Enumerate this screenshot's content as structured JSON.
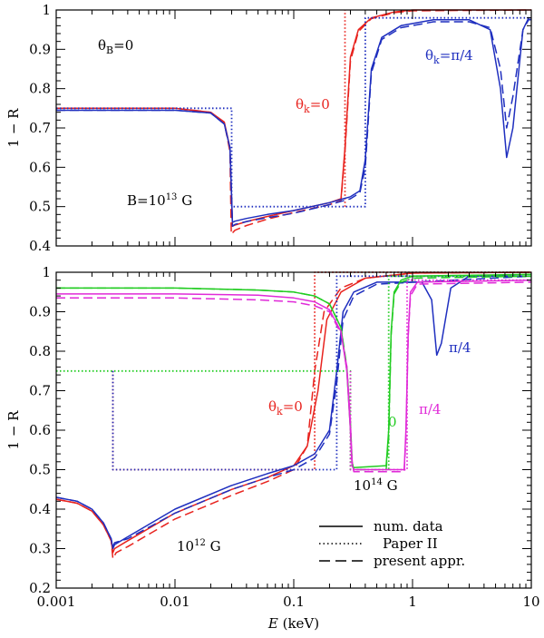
{
  "chart_data": [
    {
      "type": "line",
      "panel": "top",
      "xscale": "log",
      "xlim": [
        0.001,
        10
      ],
      "ylim": [
        0.4,
        1.0
      ],
      "ylabel": "1 − R",
      "xticks": [
        "0.001",
        "0.01",
        "0.1",
        "1",
        "10"
      ],
      "yticks": [
        "0.4",
        "0.5",
        "0.6",
        "0.7",
        "0.8",
        "0.9",
        "1"
      ],
      "annotations": {
        "theta_b": "θ_B = 0",
        "field": "B = 10^13 G",
        "theta_k0": "θ_k = 0",
        "theta_k_pi4": "θ_k = π/4"
      },
      "colors": {
        "theta_k0": "#e8231e",
        "theta_k_pi4": "#1f2fbf"
      },
      "series": [
        {
          "name": "θk=0 num. data",
          "color": "#e8231e",
          "style": "solid",
          "x": [
            0.001,
            0.01,
            0.02,
            0.026,
            0.029,
            0.0305,
            0.032,
            0.04,
            0.06,
            0.1,
            0.2,
            0.25,
            0.27,
            0.3,
            0.35,
            0.45,
            0.7,
            1,
            10
          ],
          "y": [
            0.75,
            0.75,
            0.74,
            0.715,
            0.65,
            0.45,
            0.453,
            0.462,
            0.475,
            0.49,
            0.51,
            0.52,
            0.65,
            0.88,
            0.95,
            0.98,
            0.995,
            1.0,
            1.0
          ]
        },
        {
          "name": "θk=0 present appr.",
          "color": "#e8231e",
          "style": "dashed",
          "x": [
            0.001,
            0.01,
            0.02,
            0.026,
            0.029,
            0.0298,
            0.032,
            0.04,
            0.06,
            0.1,
            0.2,
            0.25,
            0.27,
            0.3,
            0.35,
            0.45,
            0.7,
            1,
            10
          ],
          "y": [
            0.75,
            0.75,
            0.74,
            0.713,
            0.64,
            0.43,
            0.44,
            0.452,
            0.468,
            0.485,
            0.505,
            0.515,
            0.64,
            0.87,
            0.945,
            0.978,
            0.993,
            0.998,
            1.0
          ]
        },
        {
          "name": "θk=0 Paper II",
          "color": "#e8231e",
          "style": "dotted",
          "x": [
            0.27,
            0.27
          ],
          "y": [
            0.5,
            1.0
          ]
        },
        {
          "name": "θk=π/4 num. data",
          "color": "#1f2fbf",
          "style": "solid",
          "x": [
            0.001,
            0.01,
            0.02,
            0.026,
            0.029,
            0.0305,
            0.032,
            0.04,
            0.06,
            0.1,
            0.2,
            0.3,
            0.36,
            0.4,
            0.45,
            0.55,
            0.8,
            1.5,
            3,
            4.5,
            5.5,
            6.2,
            7,
            8.5,
            9.5,
            10
          ],
          "y": [
            0.745,
            0.745,
            0.738,
            0.71,
            0.65,
            0.46,
            0.463,
            0.47,
            0.48,
            0.49,
            0.51,
            0.525,
            0.54,
            0.62,
            0.85,
            0.93,
            0.96,
            0.975,
            0.975,
            0.95,
            0.8,
            0.625,
            0.7,
            0.95,
            0.98,
            0.98
          ]
        },
        {
          "name": "θk=π/4 present appr.",
          "color": "#1f2fbf",
          "style": "dashed",
          "x": [
            0.001,
            0.01,
            0.02,
            0.026,
            0.029,
            0.0305,
            0.032,
            0.04,
            0.06,
            0.1,
            0.2,
            0.3,
            0.36,
            0.4,
            0.45,
            0.55,
            0.8,
            1.5,
            3,
            4.5,
            5.5,
            6.2,
            7,
            8.5,
            9.5,
            10
          ],
          "y": [
            0.745,
            0.745,
            0.738,
            0.71,
            0.65,
            0.45,
            0.455,
            0.462,
            0.472,
            0.483,
            0.505,
            0.52,
            0.535,
            0.6,
            0.84,
            0.925,
            0.955,
            0.97,
            0.97,
            0.955,
            0.85,
            0.7,
            0.78,
            0.95,
            0.975,
            0.975
          ]
        },
        {
          "name": "θk=π/4 Paper II",
          "color": "#1f2fbf",
          "style": "dotted",
          "x": [
            0.001,
            0.03,
            0.03,
            0.4,
            0.4,
            10
          ],
          "y": [
            0.75,
            0.75,
            0.5,
            0.5,
            0.98,
            0.98
          ]
        }
      ]
    },
    {
      "type": "line",
      "panel": "bottom",
      "xscale": "log",
      "xlim": [
        0.001,
        10
      ],
      "ylim": [
        0.2,
        1.0
      ],
      "xlabel": "E (keV)",
      "ylabel": "1 − R",
      "xticks": [
        "0.001",
        "0.01",
        "0.1",
        "1",
        "10"
      ],
      "yticks": [
        "0.2",
        "0.3",
        "0.4",
        "0.5",
        "0.6",
        "0.7",
        "0.8",
        "0.9",
        "1"
      ],
      "annotations": {
        "field_12": "10^12 G",
        "field_14": "10^14 G",
        "theta_k0": "θ_k = 0",
        "zero": "0",
        "pi4_blue": "π/4",
        "pi4_magenta": "π/4"
      },
      "legend": [
        "num. data",
        "Paper II",
        "present appr."
      ],
      "colors": {
        "b12_k0": "#e8231e",
        "b12_pi4": "#1f2fbf",
        "b14_k0": "#22cc22",
        "b14_pi4": "#e02ad8"
      },
      "series": [
        {
          "name": "10^12 G θk=0 num. data",
          "color": "#e8231e",
          "style": "solid",
          "x": [
            0.001,
            0.0015,
            0.002,
            0.0025,
            0.0029,
            0.003,
            0.0031,
            0.004,
            0.01,
            0.03,
            0.06,
            0.1,
            0.13,
            0.16,
            0.19,
            0.25,
            0.4,
            1,
            10
          ],
          "y": [
            0.425,
            0.415,
            0.395,
            0.36,
            0.32,
            0.29,
            0.3,
            0.32,
            0.39,
            0.45,
            0.48,
            0.51,
            0.56,
            0.7,
            0.88,
            0.95,
            0.985,
            0.998,
            1.0
          ]
        },
        {
          "name": "10^12 G θk=0 present appr.",
          "color": "#e8231e",
          "style": "dashed",
          "x": [
            0.001,
            0.0015,
            0.002,
            0.0025,
            0.0029,
            0.003,
            0.0032,
            0.004,
            0.01,
            0.03,
            0.06,
            0.1,
            0.13,
            0.15,
            0.18,
            0.25,
            0.4,
            1,
            10
          ],
          "y": [
            0.425,
            0.415,
            0.395,
            0.36,
            0.32,
            0.275,
            0.29,
            0.305,
            0.375,
            0.435,
            0.47,
            0.5,
            0.56,
            0.75,
            0.9,
            0.96,
            0.985,
            0.998,
            1.0
          ]
        },
        {
          "name": "10^12 G θk=0 Paper II",
          "color": "#e8231e",
          "style": "dotted",
          "x": [
            0.003,
            0.003,
            0.15,
            0.15,
            10
          ],
          "y": [
            0.75,
            0.5,
            0.5,
            1.0,
            1.0
          ]
        },
        {
          "name": "10^12 G θk=π/4 num. data",
          "color": "#1f2fbf",
          "style": "solid",
          "x": [
            0.001,
            0.0015,
            0.002,
            0.0025,
            0.0029,
            0.003,
            0.0031,
            0.004,
            0.01,
            0.03,
            0.06,
            0.1,
            0.15,
            0.2,
            0.23,
            0.26,
            0.32,
            0.5,
            1.2,
            1.45,
            1.6,
            1.75,
            2.1,
            3,
            10
          ],
          "y": [
            0.43,
            0.42,
            0.4,
            0.365,
            0.325,
            0.3,
            0.31,
            0.33,
            0.4,
            0.46,
            0.49,
            0.51,
            0.54,
            0.6,
            0.75,
            0.9,
            0.95,
            0.975,
            0.975,
            0.93,
            0.79,
            0.82,
            0.96,
            0.99,
            0.99
          ]
        },
        {
          "name": "10^12 G θk=π/4 present appr.",
          "color": "#1f2fbf",
          "style": "dashed",
          "x": [
            0.001,
            0.0015,
            0.002,
            0.0025,
            0.0029,
            0.003,
            0.0031,
            0.004,
            0.01,
            0.03,
            0.06,
            0.1,
            0.15,
            0.2,
            0.23,
            0.26,
            0.32,
            0.5,
            10
          ],
          "y": [
            0.43,
            0.42,
            0.4,
            0.365,
            0.325,
            0.305,
            0.315,
            0.325,
            0.39,
            0.45,
            0.48,
            0.5,
            0.53,
            0.59,
            0.72,
            0.88,
            0.94,
            0.97,
            0.99
          ]
        },
        {
          "name": "10^12 G θk=π/4 Paper II",
          "color": "#1f2fbf",
          "style": "dotted",
          "x": [
            0.003,
            0.003,
            0.23,
            0.23,
            10
          ],
          "y": [
            0.75,
            0.5,
            0.5,
            0.99,
            0.99
          ]
        },
        {
          "name": "10^14 G θk=0 num. data",
          "color": "#22cc22",
          "style": "solid",
          "x": [
            0.001,
            0.01,
            0.05,
            0.1,
            0.15,
            0.2,
            0.25,
            0.28,
            0.3,
            0.31,
            0.32,
            0.6,
            0.63,
            0.66,
            0.7,
            0.8,
            1,
            10
          ],
          "y": [
            0.96,
            0.96,
            0.955,
            0.95,
            0.94,
            0.92,
            0.86,
            0.75,
            0.6,
            0.51,
            0.505,
            0.51,
            0.6,
            0.85,
            0.95,
            0.98,
            0.99,
            0.995
          ]
        },
        {
          "name": "10^14 G θk=0 present appr.",
          "color": "#22cc22",
          "style": "dashed",
          "x": [
            0.001,
            0.01,
            0.05,
            0.1,
            0.15,
            0.2,
            0.25,
            0.28,
            0.3,
            0.31,
            0.32,
            0.6,
            0.63,
            0.66,
            0.7,
            0.8,
            1,
            10
          ],
          "y": [
            0.96,
            0.96,
            0.955,
            0.95,
            0.94,
            0.92,
            0.86,
            0.76,
            0.62,
            0.52,
            0.5,
            0.5,
            0.58,
            0.84,
            0.945,
            0.975,
            0.985,
            0.99
          ]
        },
        {
          "name": "10^14 G θk=0 Paper II",
          "color": "#22cc22",
          "style": "dotted",
          "x": [
            0.001,
            0.3,
            0.3,
            0.63,
            0.63,
            10
          ],
          "y": [
            0.75,
            0.75,
            0.5,
            0.5,
            0.99,
            0.99
          ]
        },
        {
          "name": "10^14 G θk=π/4 num. data",
          "color": "#e02ad8",
          "style": "solid",
          "x": [
            0.001,
            0.01,
            0.05,
            0.1,
            0.15,
            0.2,
            0.25,
            0.28,
            0.3,
            0.31,
            0.32,
            0.85,
            0.88,
            0.92,
            0.96,
            1.1,
            10
          ],
          "y": [
            0.945,
            0.945,
            0.942,
            0.935,
            0.925,
            0.905,
            0.85,
            0.75,
            0.6,
            0.51,
            0.5,
            0.5,
            0.6,
            0.85,
            0.95,
            0.975,
            0.98
          ]
        },
        {
          "name": "10^14 G θk=π/4 present appr.",
          "color": "#e02ad8",
          "style": "dashed",
          "x": [
            0.001,
            0.01,
            0.05,
            0.1,
            0.15,
            0.2,
            0.25,
            0.28,
            0.3,
            0.31,
            0.32,
            0.85,
            0.88,
            0.92,
            0.96,
            1.1,
            10
          ],
          "y": [
            0.935,
            0.935,
            0.93,
            0.925,
            0.915,
            0.9,
            0.845,
            0.76,
            0.62,
            0.52,
            0.495,
            0.495,
            0.58,
            0.84,
            0.94,
            0.97,
            0.975
          ]
        },
        {
          "name": "10^14 G θk=π/4 Paper II",
          "color": "#e02ad8",
          "style": "dotted",
          "x": [
            0.3,
            0.3,
            0.9,
            0.9,
            10
          ],
          "y": [
            0.75,
            0.5,
            0.5,
            0.98,
            0.98
          ]
        }
      ]
    }
  ]
}
